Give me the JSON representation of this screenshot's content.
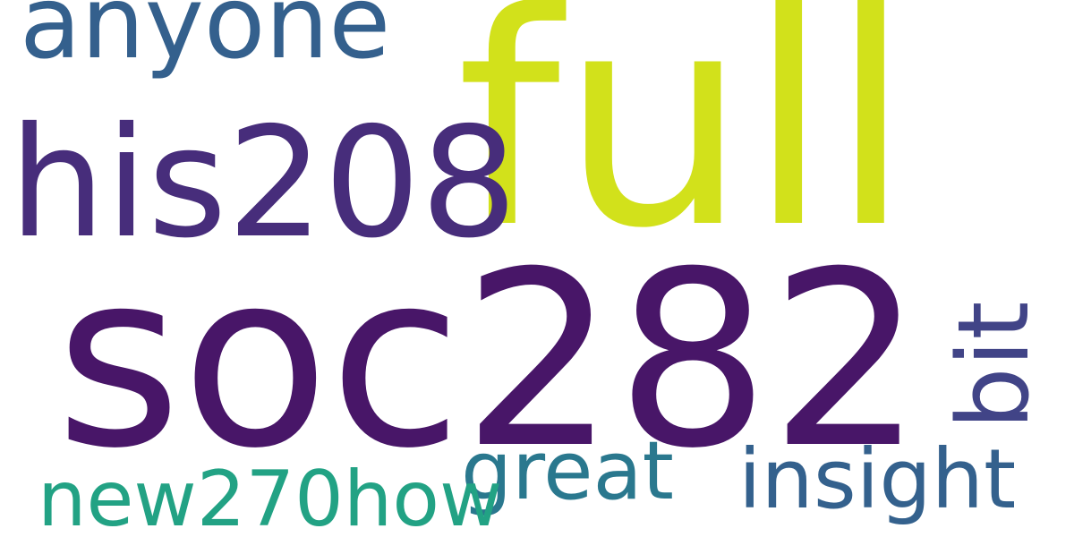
{
  "words": [
    {
      "key": "full",
      "text": "full",
      "color": "#d2e11b"
    },
    {
      "key": "soc282",
      "text": "soc282",
      "color": "#481668"
    },
    {
      "key": "his208",
      "text": "his208",
      "color": "#472d7b"
    },
    {
      "key": "anyone",
      "text": "anyone",
      "color": "#34608d"
    },
    {
      "key": "bit",
      "text": "bit",
      "color": "#414487"
    },
    {
      "key": "insight",
      "text": "insight",
      "color": "#34618d"
    },
    {
      "key": "great",
      "text": "great",
      "color": "#2a788e"
    },
    {
      "key": "new270how",
      "text": "new270how",
      "color": "#22a284"
    }
  ]
}
